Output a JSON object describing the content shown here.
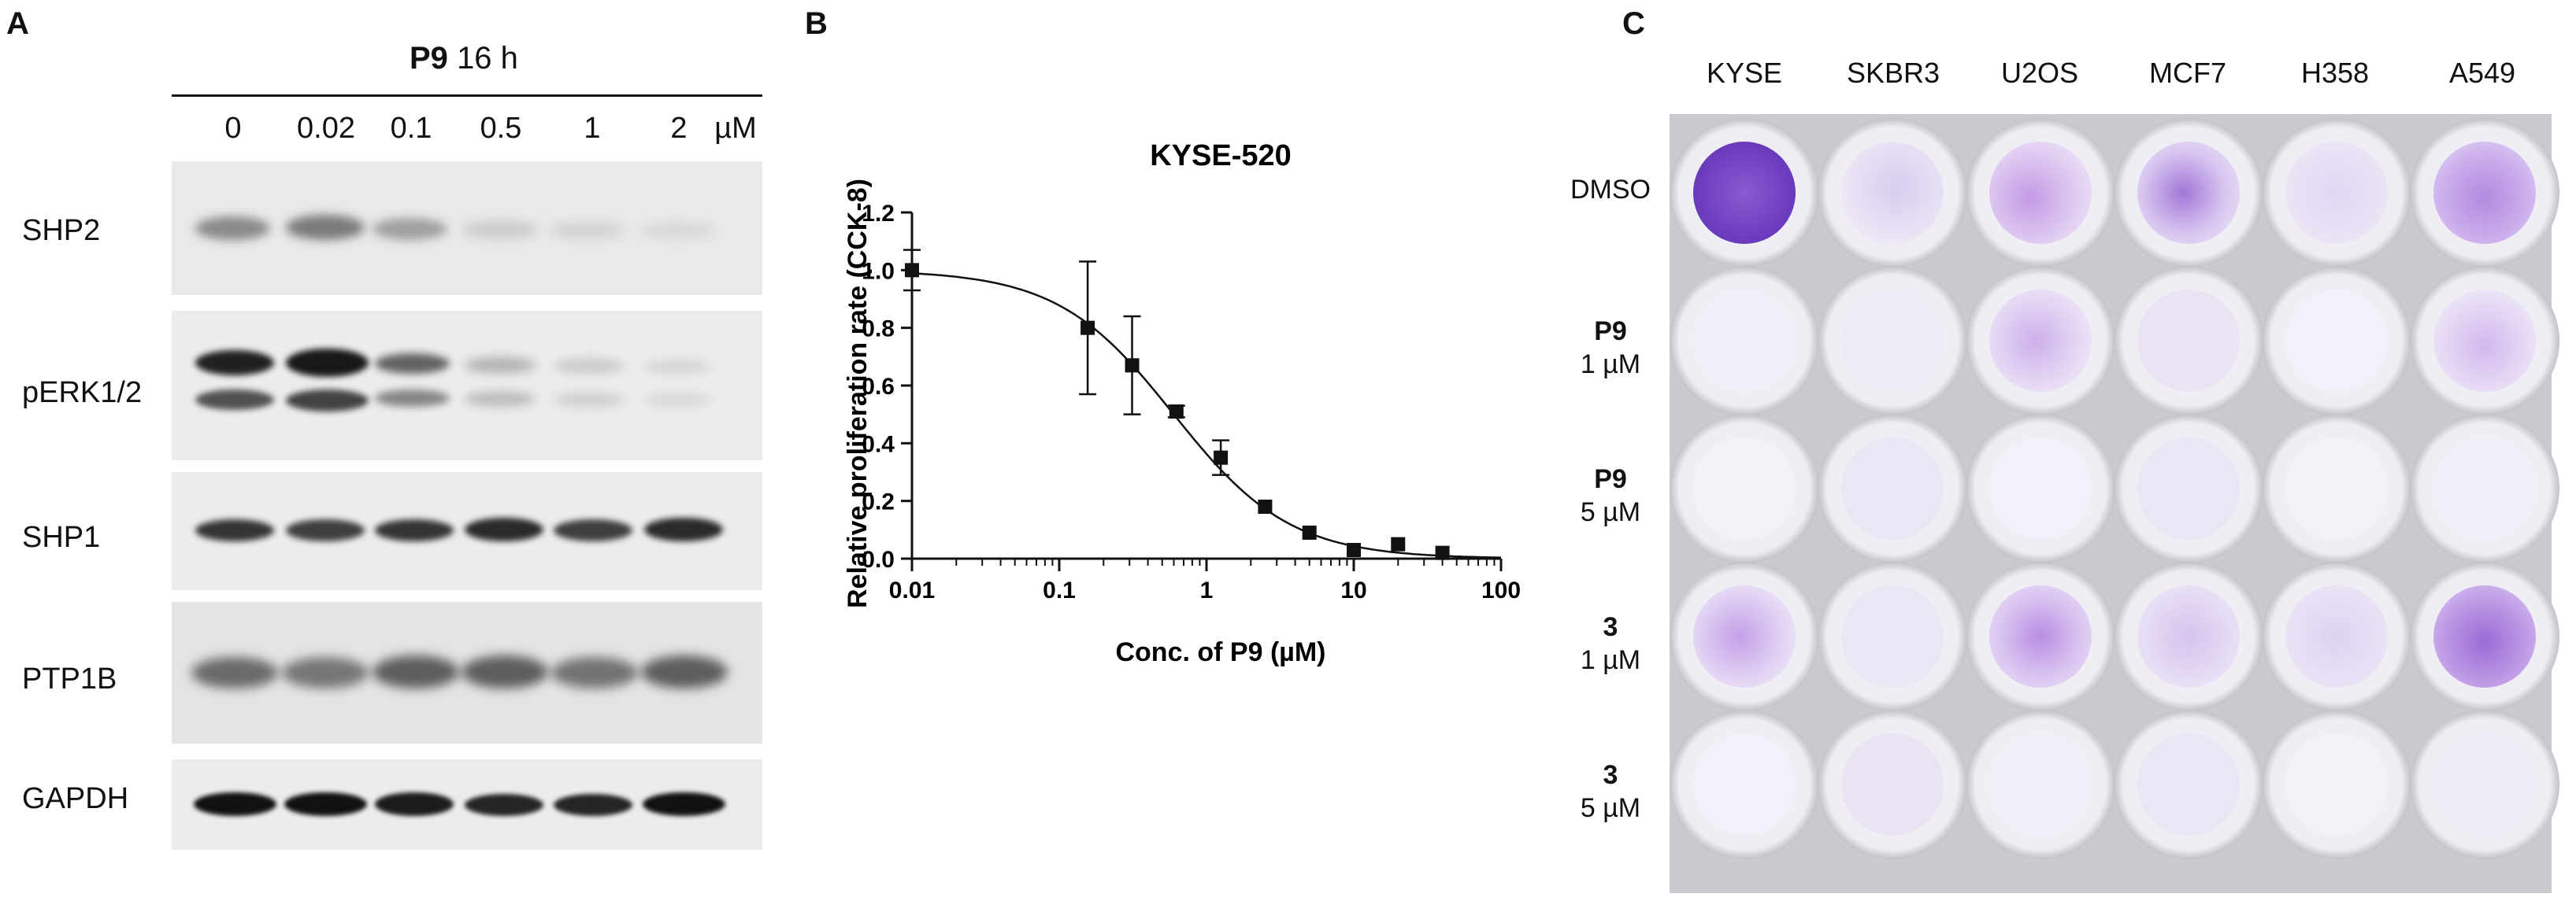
{
  "figure": {
    "panel_a": {
      "letter": "A",
      "treatment": {
        "compound": "P9",
        "duration": "16 h"
      },
      "concentrations": [
        "0",
        "0.02",
        "0.1",
        "0.5",
        "1",
        "2"
      ],
      "unit": "µM",
      "bands": [
        "SHP2",
        "pERK1/2",
        "SHP1",
        "PTP1B",
        "GAPDH"
      ]
    },
    "panel_b": {
      "letter": "B"
    },
    "panel_c": {
      "letter": "C",
      "cell_lines": [
        "KYSE",
        "SKBR3",
        "U2OS",
        "MCF7",
        "H358",
        "A549"
      ],
      "rows": [
        {
          "compound": "",
          "dose": "DMSO"
        },
        {
          "compound": "P9",
          "dose": "1 µM"
        },
        {
          "compound": "P9",
          "dose": "5 µM"
        },
        {
          "compound": "3",
          "dose": "1 µM"
        },
        {
          "compound": "3",
          "dose": "5 µM"
        }
      ]
    }
  },
  "chart_data": {
    "type": "scatter",
    "title": "KYSE-520",
    "xlabel": "Conc. of P9 (µM)",
    "ylabel": "Relative proliferation rate (CCK-8)",
    "xscale": "log",
    "xlim": [
      0.01,
      100
    ],
    "ylim": [
      0,
      1.2
    ],
    "xticks": [
      "0.01",
      "0.1",
      "1",
      "10",
      "100"
    ],
    "yticks": [
      "0.0",
      "0.2",
      "0.4",
      "0.6",
      "0.8",
      "1.0",
      "1.2"
    ],
    "series": [
      {
        "name": "KYSE-520",
        "x": [
          0.01,
          0.156,
          0.3125,
          0.625,
          1.25,
          2.5,
          5,
          10,
          20,
          40
        ],
        "y": [
          1.0,
          0.8,
          0.67,
          0.51,
          0.35,
          0.18,
          0.09,
          0.03,
          0.05,
          0.02
        ],
        "err": [
          0.07,
          0.23,
          0.17,
          0.02,
          0.06,
          0.01,
          0.01,
          0.005,
          0.01,
          0.01
        ]
      }
    ],
    "fit": {
      "type": "four-parameter logistic",
      "top": 1.0,
      "bottom": 0.0,
      "ic50": 0.6,
      "hill": 1.1
    }
  }
}
